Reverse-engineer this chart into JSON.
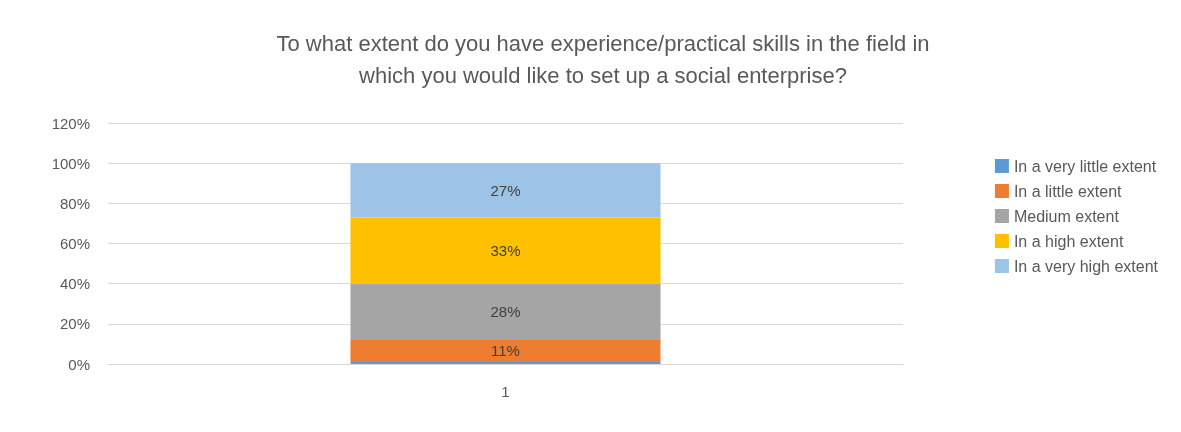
{
  "chart_data": {
    "type": "bar",
    "title": "To what extent do you have experience/practical skills in the field in\nwhich you would like to set up a social enterprise?",
    "categories": [
      "1"
    ],
    "stacked": true,
    "ylim": [
      0,
      120
    ],
    "yticks": [
      {
        "value": 0,
        "label": "0%"
      },
      {
        "value": 20,
        "label": "20%"
      },
      {
        "value": 40,
        "label": "40%"
      },
      {
        "value": 60,
        "label": "60%"
      },
      {
        "value": 80,
        "label": "80%"
      },
      {
        "value": 100,
        "label": "100%"
      },
      {
        "value": 120,
        "label": "120%"
      }
    ],
    "grid": "y",
    "legend": "right",
    "series": [
      {
        "name": "In a very little extent",
        "color": "#5b9bd5",
        "values": [
          1
        ],
        "value_labels": [
          null
        ]
      },
      {
        "name": "In a little extent",
        "color": "#ed7d31",
        "values": [
          11
        ],
        "value_labels": [
          "11%"
        ]
      },
      {
        "name": "Medium extent",
        "color": "#a5a5a5",
        "values": [
          28
        ],
        "value_labels": [
          "28%"
        ]
      },
      {
        "name": "In a high extent",
        "color": "#ffc000",
        "values": [
          33
        ],
        "value_labels": [
          "33%"
        ]
      },
      {
        "name": "In a very high extent",
        "color": "#9dc3e6",
        "values": [
          27
        ],
        "value_labels": [
          "27%"
        ]
      }
    ]
  }
}
